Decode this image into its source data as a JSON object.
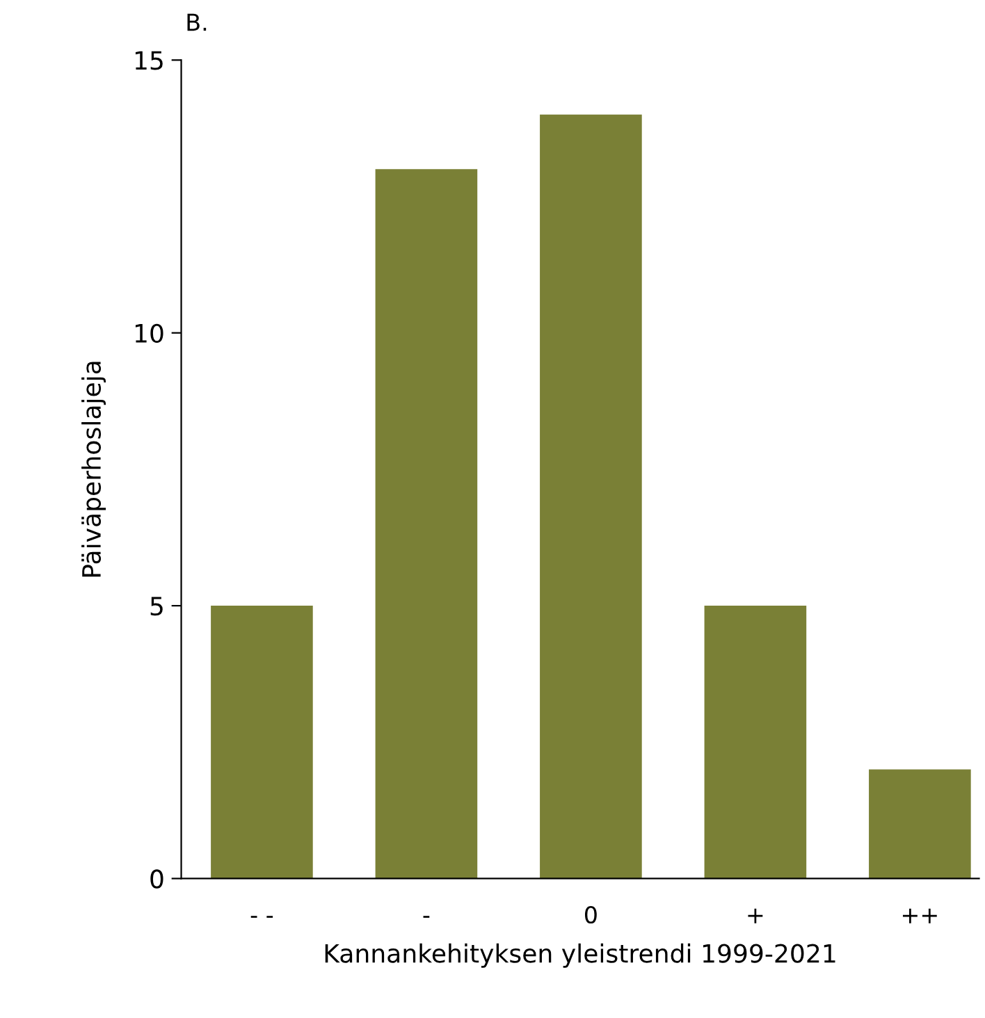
{
  "chart_data": {
    "type": "bar",
    "title": "B.",
    "xlabel": "Kannankehityksen yleistrendi 1999-2021",
    "ylabel": "Päiväperhoslajeja",
    "categories": [
      "- -",
      "-",
      "0",
      "+",
      "++"
    ],
    "values": [
      5,
      13,
      14,
      5,
      2
    ],
    "color": "#7a8036",
    "ylim": [
      0,
      15
    ],
    "yticks": [
      0,
      5,
      10,
      15
    ],
    "grid": false,
    "legend": false
  }
}
